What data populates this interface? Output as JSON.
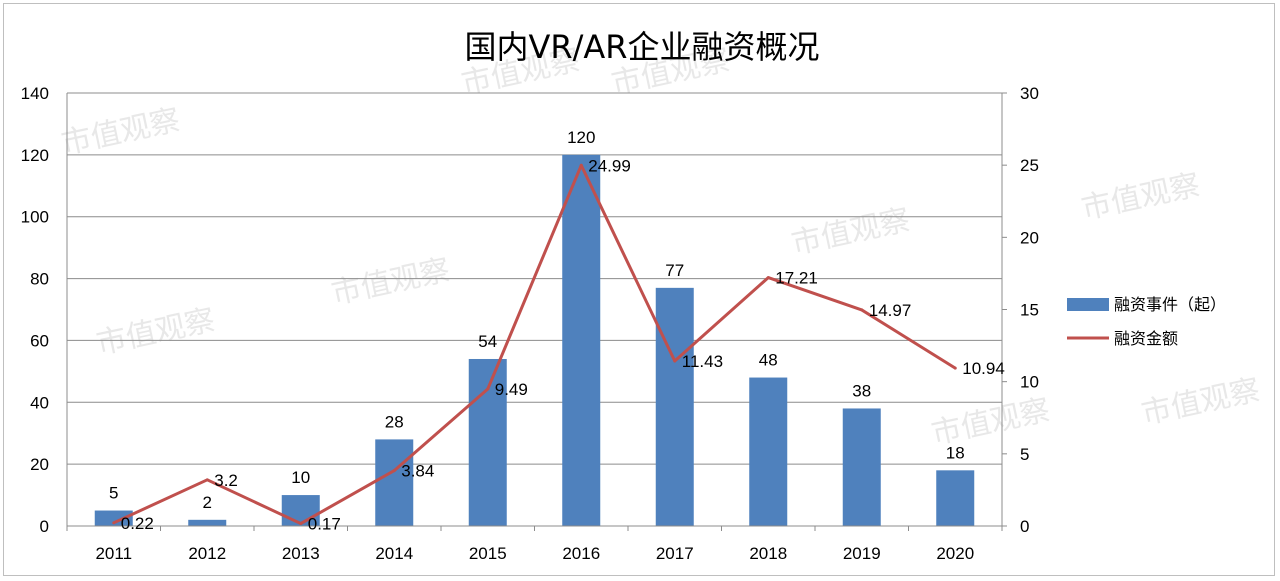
{
  "chart_data": {
    "type": "bar",
    "title": "国内VR/AR企业融资概况",
    "categories": [
      "2011",
      "2012",
      "2013",
      "2014",
      "2015",
      "2016",
      "2017",
      "2018",
      "2019",
      "2020"
    ],
    "series": [
      {
        "name": "融资事件（起）",
        "type": "bar",
        "axis": "left",
        "color": "#4f81bd",
        "values": [
          5,
          2,
          10,
          28,
          54,
          120,
          77,
          48,
          38,
          18
        ],
        "labels": [
          "5",
          "2",
          "10",
          "28",
          "54",
          "120",
          "77",
          "48",
          "38",
          "18"
        ]
      },
      {
        "name": "融资金额",
        "type": "line",
        "axis": "right",
        "color": "#c0504d",
        "values": [
          0.22,
          3.2,
          0.17,
          3.84,
          9.49,
          24.99,
          11.43,
          17.21,
          14.97,
          10.94
        ],
        "labels": [
          "0.22",
          "3.2",
          "0.17",
          "3.84",
          "9.49",
          "24.99",
          "11.43",
          "17.21",
          "14.97",
          "10.94"
        ]
      }
    ],
    "y_left": {
      "min": 0,
      "max": 140,
      "step": 20,
      "ticks": [
        "0",
        "20",
        "40",
        "60",
        "80",
        "100",
        "120",
        "140"
      ]
    },
    "y_right": {
      "min": 0,
      "max": 30,
      "step": 5,
      "ticks": [
        "0",
        "5",
        "10",
        "15",
        "20",
        "25",
        "30"
      ]
    },
    "grid": true,
    "legend_position": "right"
  },
  "watermark": {
    "text": "市值观察"
  }
}
